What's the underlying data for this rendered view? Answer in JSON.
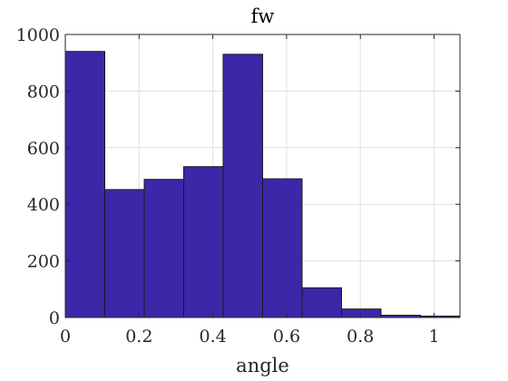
{
  "chart_data": {
    "type": "bar",
    "title": "fw",
    "xlabel": "angle",
    "ylabel": "",
    "xlim": [
      0,
      1.07
    ],
    "ylim": [
      0,
      1000
    ],
    "xticks": [
      0,
      0.2,
      0.4,
      0.6,
      0.8,
      1
    ],
    "xtick_labels": [
      "0",
      "0.2",
      "0.4",
      "0.6",
      "0.8",
      "1"
    ],
    "yticks": [
      0,
      200,
      400,
      600,
      800,
      1000
    ],
    "ytick_labels": [
      "0",
      "200",
      "400",
      "600",
      "800",
      "1000"
    ],
    "grid": true,
    "bins": [
      {
        "x0": 0.0,
        "x1": 0.107,
        "value": 940
      },
      {
        "x0": 0.107,
        "x1": 0.214,
        "value": 452
      },
      {
        "x0": 0.214,
        "x1": 0.321,
        "value": 488
      },
      {
        "x0": 0.321,
        "x1": 0.428,
        "value": 533
      },
      {
        "x0": 0.428,
        "x1": 0.535,
        "value": 930
      },
      {
        "x0": 0.535,
        "x1": 0.642,
        "value": 490
      },
      {
        "x0": 0.642,
        "x1": 0.749,
        "value": 105
      },
      {
        "x0": 0.749,
        "x1": 0.856,
        "value": 30
      },
      {
        "x0": 0.856,
        "x1": 0.963,
        "value": 8
      },
      {
        "x0": 0.963,
        "x1": 1.07,
        "value": 5
      }
    ],
    "colors": {
      "bar_fill": "#3a28a8",
      "bar_edge": "#1a1a1a",
      "grid": "#e0e0e0",
      "axis": "#262626"
    }
  }
}
